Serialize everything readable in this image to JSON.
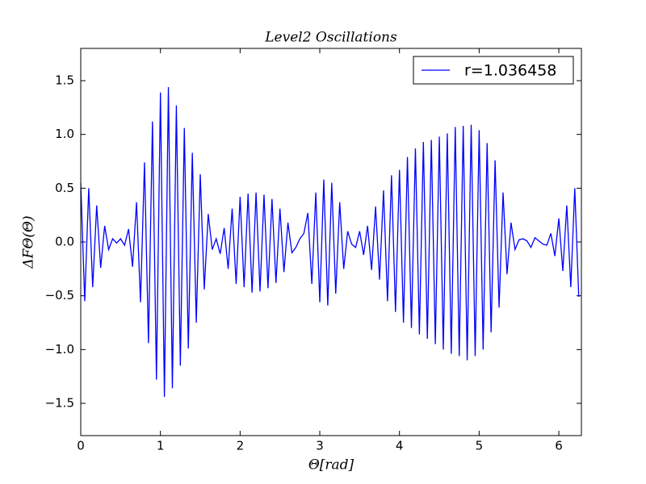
{
  "chart_data": {
    "type": "line",
    "title": "Level2 Oscillations",
    "x_label": "Θ[rad]",
    "y_label": "ΔFΘ(Θ)",
    "legend_position": "upper right",
    "grid": false,
    "x": [
      0,
      0.05,
      0.1,
      0.15,
      0.2,
      0.25,
      0.3,
      0.35,
      0.4,
      0.45,
      0.5,
      0.55,
      0.6,
      0.65,
      0.7,
      0.75,
      0.8,
      0.85,
      0.9,
      0.95,
      1,
      1.05,
      1.1,
      1.15,
      1.2,
      1.25,
      1.3,
      1.35,
      1.4,
      1.45,
      1.5,
      1.55,
      1.6,
      1.65,
      1.7,
      1.75,
      1.8,
      1.85,
      1.9,
      1.95,
      2,
      2.05,
      2.1,
      2.15,
      2.2,
      2.25,
      2.3,
      2.35,
      2.4,
      2.45,
      2.5,
      2.55,
      2.6,
      2.65,
      2.7,
      2.75,
      2.8,
      2.85,
      2.9,
      2.95,
      3,
      3.05,
      3.1,
      3.15,
      3.2,
      3.25,
      3.3,
      3.35,
      3.4,
      3.45,
      3.5,
      3.55,
      3.6,
      3.65,
      3.7,
      3.75,
      3.8,
      3.85,
      3.9,
      3.95,
      4,
      4.05,
      4.1,
      4.15,
      4.2,
      4.25,
      4.3,
      4.35,
      4.4,
      4.45,
      4.5,
      4.55,
      4.6,
      4.65,
      4.7,
      4.75,
      4.8,
      4.85,
      4.9,
      4.95,
      5,
      5.05,
      5.1,
      5.15,
      5.2,
      5.25,
      5.3,
      5.35,
      5.4,
      5.45,
      5.5,
      5.55,
      5.6,
      5.65,
      5.7,
      5.75,
      5.8,
      5.85,
      5.9,
      5.95,
      6,
      6.05,
      6.1,
      6.15,
      6.2,
      6.25
    ],
    "series": [
      {
        "name": "r=1.036458",
        "color": "#0000ff",
        "values": [
          0.55,
          -0.55,
          0.5,
          -0.42,
          0.34,
          -0.24,
          0.15,
          -0.07,
          0.03,
          -0.01,
          0.03,
          -0.03,
          0.12,
          -0.23,
          0.37,
          -0.56,
          0.74,
          -0.94,
          1.12,
          -1.28,
          1.39,
          -1.44,
          1.44,
          -1.36,
          1.27,
          -1.15,
          1.06,
          -0.99,
          0.83,
          -0.75,
          0.63,
          -0.44,
          0.26,
          -0.07,
          0.03,
          -0.11,
          0.13,
          -0.25,
          0.31,
          -0.39,
          0.42,
          -0.42,
          0.45,
          -0.47,
          0.46,
          -0.46,
          0.44,
          -0.43,
          0.4,
          -0.38,
          0.31,
          -0.28,
          0.18,
          -0.1,
          -0.05,
          0.03,
          0.08,
          0.27,
          -0.39,
          0.46,
          -0.56,
          0.58,
          -0.59,
          0.55,
          -0.48,
          0.37,
          -0.25,
          0.1,
          -0.02,
          -0.05,
          0.1,
          -0.12,
          0.15,
          -0.26,
          0.33,
          -0.35,
          0.48,
          -0.55,
          0.62,
          -0.65,
          0.67,
          -0.75,
          0.79,
          -0.8,
          0.87,
          -0.86,
          0.93,
          -0.9,
          0.95,
          -0.95,
          0.98,
          -1.0,
          1.01,
          -1.04,
          1.07,
          -1.06,
          1.08,
          -1.1,
          1.09,
          -1.06,
          1.04,
          -1.0,
          0.92,
          -0.84,
          0.76,
          -0.61,
          0.46,
          -0.3,
          0.18,
          -0.07,
          0.02,
          0.03,
          0.01,
          -0.05,
          0.04,
          0.01,
          -0.02,
          -0.03,
          0.08,
          -0.13,
          0.22,
          -0.27,
          0.34,
          -0.42,
          0.5,
          -0.51
        ]
      }
    ],
    "xlim": [
      0,
      6.2832
    ],
    "ylim": [
      -1.8,
      1.8
    ],
    "xticks": [
      0,
      1,
      2,
      3,
      4,
      5,
      6
    ],
    "yticks": [
      {
        "value": -1.5,
        "label": "−1.5"
      },
      {
        "value": -1.0,
        "label": "−1.0"
      },
      {
        "value": -0.5,
        "label": "−0.5"
      },
      {
        "value": 0,
        "label": "0.0"
      },
      0.5,
      {
        "value": 1.0,
        "label": "1.0"
      },
      1.5
    ]
  }
}
